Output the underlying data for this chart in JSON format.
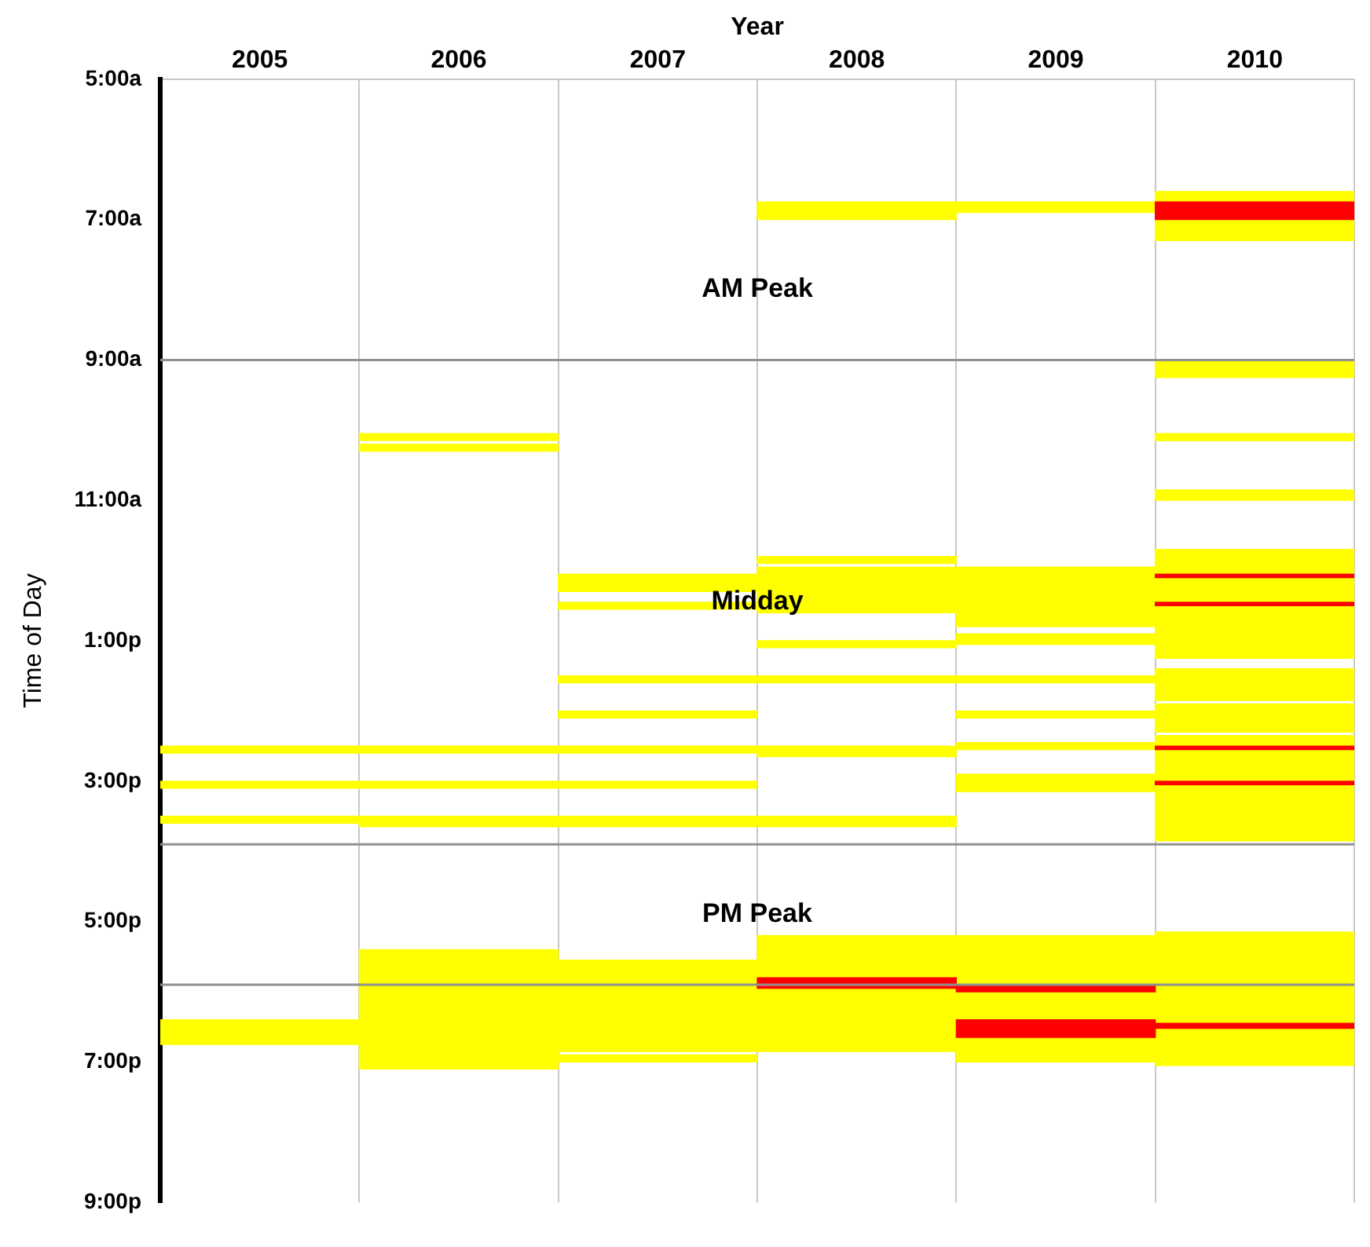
{
  "chart_data": {
    "type": "bar",
    "xlabel": "Year",
    "ylabel": "Time of Day",
    "categories": [
      "2005",
      "2006",
      "2007",
      "2008",
      "2009",
      "2010"
    ],
    "series": [
      {
        "color": "#ffff00",
        "values": [
          0.1,
          0.1,
          0.25,
          0.25,
          0.15,
          0.7
        ],
        "base": [
          14.5,
          10.05,
          12.05,
          6.75,
          6.75,
          6.6
        ]
      },
      {
        "color": "#ffff00",
        "values": [
          0.1,
          0.1,
          0.1,
          0.1,
          0.85,
          0.25
        ],
        "base": [
          15,
          10.2,
          12.45,
          11.8,
          11.95,
          9
        ]
      },
      {
        "color": "#ffff00",
        "values": [
          0.1,
          0.1,
          0.1,
          0.65,
          0.15,
          0.1
        ],
        "base": [
          15.5,
          14.5,
          13.5,
          11.95,
          12.9,
          10.05
        ]
      },
      {
        "color": "#ffff00",
        "values": [
          0.35,
          0.1,
          0.1,
          0.1,
          0.1,
          0.15
        ],
        "base": [
          18.4,
          15,
          14,
          13,
          13.5,
          10.85
        ]
      },
      {
        "color": "#ffff00",
        "values": [
          null,
          0.15,
          0.1,
          0.1,
          0.1,
          1.55
        ],
        "base": [
          null,
          15.5,
          14.5,
          13.5,
          14,
          11.7
        ]
      },
      {
        "color": "#ffff00",
        "values": [
          null,
          1.7,
          0.1,
          0.15,
          0.1,
          0.45
        ],
        "base": [
          null,
          17.4,
          15,
          14.5,
          14.45,
          13.4
        ]
      },
      {
        "color": "#ffff00",
        "values": [
          null,
          null,
          0.15,
          0.15,
          0.25,
          0.4
        ],
        "base": [
          null,
          null,
          15.5,
          15.5,
          14.9,
          13.9
        ]
      },
      {
        "color": "#ffff00",
        "values": [
          null,
          null,
          1.3,
          1.65,
          1.8,
          1.5
        ],
        "base": [
          null,
          null,
          17.55,
          17.2,
          17.2,
          14.35
        ]
      },
      {
        "color": "#ffff00",
        "values": [
          null,
          null,
          0.1,
          null,
          null,
          1.9
        ],
        "base": [
          null,
          null,
          18.9,
          null,
          null,
          17.15
        ]
      },
      {
        "color": "#ff0000",
        "values": [
          null,
          null,
          null,
          0.15,
          0.1,
          0.25
        ],
        "base": [
          null,
          null,
          null,
          17.8,
          17.9,
          6.75
        ]
      },
      {
        "color": "#ff0000",
        "values": [
          null,
          null,
          null,
          null,
          0.25,
          0.05
        ],
        "base": [
          null,
          null,
          null,
          null,
          18.4,
          12.05
        ]
      },
      {
        "color": "#ff0000",
        "values": [
          null,
          null,
          null,
          null,
          null,
          0.05
        ],
        "base": [
          null,
          null,
          null,
          null,
          null,
          12.45
        ]
      },
      {
        "color": "#ff0000",
        "values": [
          null,
          null,
          null,
          null,
          null,
          0.05
        ],
        "base": [
          null,
          null,
          null,
          null,
          null,
          14.5
        ]
      },
      {
        "color": "#ff0000",
        "values": [
          null,
          null,
          null,
          null,
          null,
          0.05
        ],
        "base": [
          null,
          null,
          null,
          null,
          null,
          15
        ]
      },
      {
        "color": "#ff0000",
        "values": [
          null,
          null,
          null,
          null,
          null,
          0.07
        ],
        "base": [
          null,
          null,
          null,
          null,
          null,
          18.45
        ]
      }
    ],
    "ylim": [
      21,
      5
    ],
    "yticks": [
      {
        "value": 5,
        "label": "5:00a"
      },
      {
        "value": 7,
        "label": "7:00a"
      },
      {
        "value": 9,
        "label": "9:00a"
      },
      {
        "value": 11,
        "label": "11:00a"
      },
      {
        "value": 13,
        "label": "1:00p"
      },
      {
        "value": 15,
        "label": "3:00p"
      },
      {
        "value": 17,
        "label": "5:00p"
      },
      {
        "value": 19,
        "label": "7:00p"
      },
      {
        "value": 21,
        "label": "9:00p"
      }
    ],
    "ref_lines": [
      {
        "axis": "y",
        "value": 9,
        "color": "#909090"
      },
      {
        "axis": "y",
        "value": 15.9,
        "color": "#909090"
      },
      {
        "axis": "y",
        "value": 17.9,
        "color": "#909090"
      }
    ],
    "annotations": [
      "AM Peak",
      "Midday",
      "PM Peak"
    ],
    "grid": "x",
    "legend": false
  }
}
